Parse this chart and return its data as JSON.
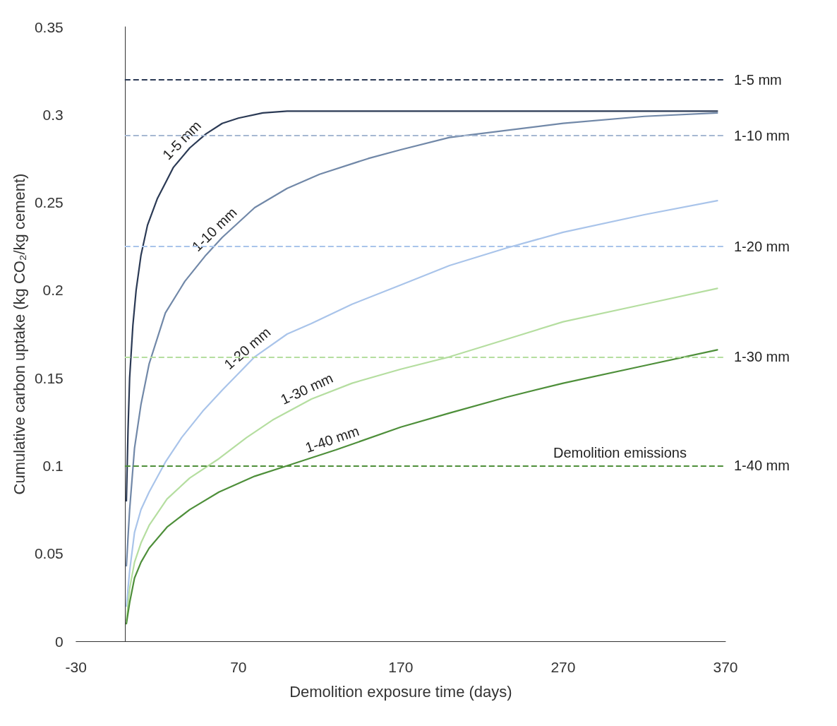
{
  "chart_data": {
    "type": "line",
    "xlabel": "Demolition exposure time (days)",
    "ylabel": "Cumulative carbon uptake (kg CO₂/kg cement)",
    "xlim": [
      -30,
      370
    ],
    "xticks": [
      -30,
      70,
      170,
      270,
      370
    ],
    "ylim": [
      0,
      0.35
    ],
    "yticks": [
      0,
      0.05,
      0.1,
      0.15,
      0.2,
      0.25,
      0.3,
      0.35
    ],
    "marker": "none",
    "series": [
      {
        "name": "1-5 mm",
        "color": "#2b3a55",
        "x": [
          1,
          2,
          3,
          5,
          7,
          10,
          14,
          20,
          30,
          40,
          50,
          60,
          70,
          85,
          100,
          150,
          365
        ],
        "values": [
          0.08,
          0.12,
          0.15,
          0.18,
          0.2,
          0.22,
          0.237,
          0.252,
          0.27,
          0.281,
          0.289,
          0.295,
          0.298,
          0.301,
          0.302,
          0.302,
          0.302
        ]
      },
      {
        "name": "1-10 mm",
        "color": "#7188a8",
        "x": [
          1,
          3,
          6,
          10,
          15,
          25,
          37,
          50,
          60,
          80,
          100,
          120,
          150,
          170,
          200,
          270,
          320,
          365
        ],
        "values": [
          0.043,
          0.075,
          0.11,
          0.135,
          0.158,
          0.187,
          0.205,
          0.22,
          0.23,
          0.247,
          0.258,
          0.266,
          0.275,
          0.28,
          0.287,
          0.295,
          0.299,
          0.301
        ]
      },
      {
        "name": "1-20 mm",
        "color": "#a9c4ea",
        "x": [
          1,
          3,
          6,
          10,
          15,
          25,
          35,
          48,
          60,
          80,
          100,
          115,
          140,
          170,
          200,
          235,
          270,
          320,
          365
        ],
        "values": [
          0.02,
          0.04,
          0.062,
          0.075,
          0.085,
          0.102,
          0.116,
          0.131,
          0.143,
          0.162,
          0.175,
          0.181,
          0.192,
          0.203,
          0.214,
          0.224,
          0.233,
          0.243,
          0.251
        ]
      },
      {
        "name": "1-30 mm",
        "color": "#b5dea0",
        "x": [
          1,
          3,
          6,
          10,
          15,
          26,
          40,
          58,
          75,
          91,
          115,
          140,
          170,
          200,
          235,
          270,
          320,
          365
        ],
        "values": [
          0.012,
          0.03,
          0.045,
          0.056,
          0.066,
          0.081,
          0.093,
          0.104,
          0.116,
          0.126,
          0.138,
          0.147,
          0.155,
          0.162,
          0.172,
          0.182,
          0.192,
          0.201
        ]
      },
      {
        "name": "1-40 mm",
        "color": "#4e8f3a",
        "x": [
          1,
          3,
          6,
          10,
          15,
          26,
          40,
          58,
          80,
          100,
          130,
          170,
          200,
          235,
          270,
          320,
          365
        ],
        "values": [
          0.01,
          0.022,
          0.036,
          0.045,
          0.053,
          0.065,
          0.075,
          0.085,
          0.094,
          0.1,
          0.109,
          0.122,
          0.13,
          0.139,
          0.147,
          0.157,
          0.166
        ]
      }
    ],
    "ref_lines": [
      {
        "axis": "y",
        "value": 0.32,
        "label": "1-5 mm",
        "color": "#2b3a55",
        "line_style": "dashed"
      },
      {
        "axis": "y",
        "value": 0.288,
        "label": "1-10 mm",
        "color": "#a6b8d2",
        "line_style": "dashed"
      },
      {
        "axis": "y",
        "value": 0.225,
        "label": "1-20 mm",
        "color": "#a9c4ea",
        "line_style": "dashed"
      },
      {
        "axis": "y",
        "value": 0.162,
        "label": "1-30 mm",
        "color": "#b5dea0",
        "line_style": "dashed"
      },
      {
        "axis": "y",
        "value": 0.1,
        "label": "1-40 mm",
        "color": "#4e8f3a",
        "line_style": "dashed"
      }
    ],
    "annotations": [
      {
        "text": "Demolition emissions",
        "x": 305,
        "y": 0.1
      }
    ]
  }
}
